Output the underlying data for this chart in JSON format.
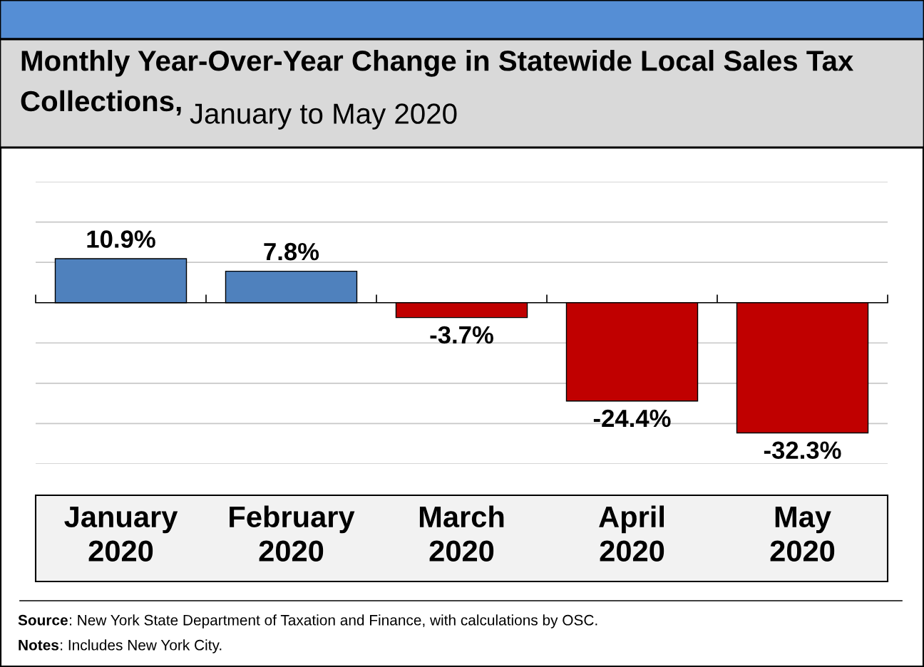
{
  "chart_data": {
    "type": "bar",
    "title": "Monthly Year-Over-Year Change in Statewide Local Sales Tax Collections,",
    "subtitle": "January to May 2020",
    "categories": [
      "January\n2020",
      "February\n2020",
      "March\n2020",
      "April\n2020",
      "May\n2020"
    ],
    "values": [
      10.9,
      7.8,
      -3.7,
      -24.4,
      -32.3
    ],
    "colors": [
      "#4f81bd",
      "#4f81bd",
      "#c00000",
      "#c00000",
      "#c00000"
    ],
    "value_labels": [
      "10.9%",
      "7.8%",
      "-3.7%",
      "-24.4%",
      "-32.3%"
    ],
    "ylim": [
      -40,
      30
    ],
    "yticks": [
      {
        "value": -40,
        "label": null
      },
      {
        "value": -30,
        "label": null
      },
      {
        "value": -20,
        "label": null
      },
      {
        "value": -10,
        "label": null
      },
      {
        "value": 0,
        "label": null
      },
      {
        "value": 10,
        "label": null
      },
      {
        "value": 20,
        "label": null
      },
      {
        "value": 30,
        "label": null
      }
    ],
    "tick_labels": "x",
    "grid": "y",
    "annotations": [
      "Source: New York State Department of Taxation and Finance, with calculations by OSC.",
      "Notes: Includes New York City."
    ]
  }
}
